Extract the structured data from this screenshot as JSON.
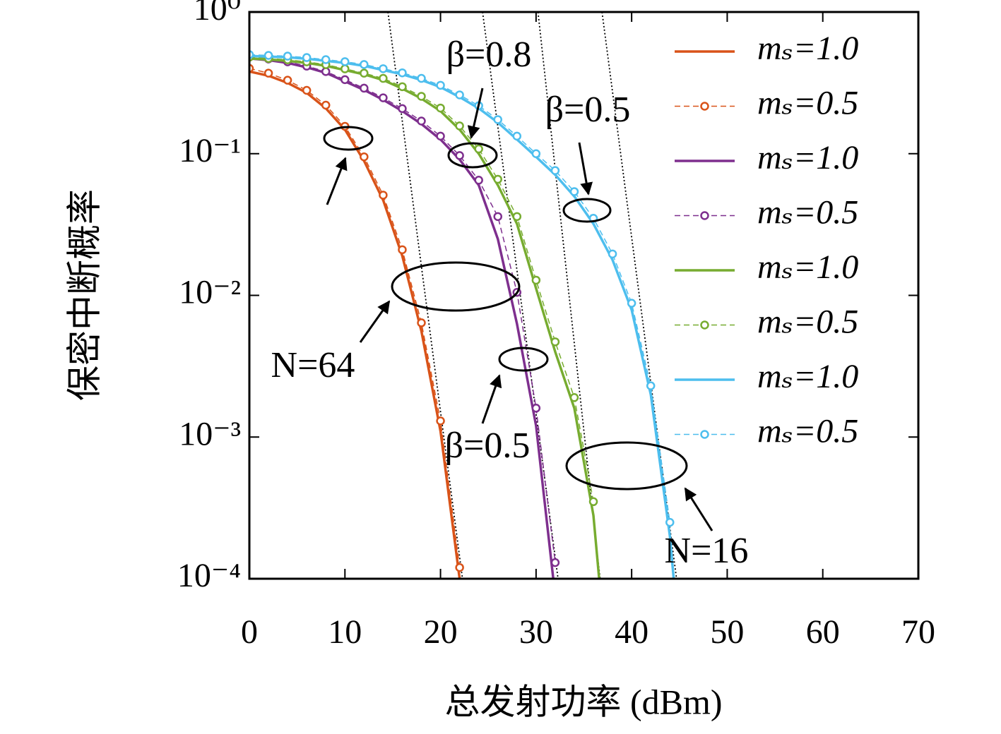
{
  "chart_data": {
    "type": "line",
    "xlabel": "总发射功率 (dBm)",
    "ylabel": "保密中断概率",
    "log_y": true,
    "xlim": [
      0,
      70
    ],
    "xticks": [
      0,
      10,
      20,
      30,
      40,
      50,
      60,
      70
    ],
    "ylim": [
      0.0001,
      1
    ],
    "yticks": [
      {
        "value": 0.0001,
        "label": "10⁻⁴"
      },
      {
        "value": 0.001,
        "label": "10⁻³"
      },
      {
        "value": 0.01,
        "label": "10⁻²"
      },
      {
        "value": 0.1,
        "label": "10⁻¹"
      },
      {
        "value": 1,
        "label": "10⁰"
      }
    ],
    "legend": "upper right",
    "series": [
      {
        "name": "mₛ=1.0",
        "color": "#d95319",
        "style": "solid",
        "x": [
          0,
          2,
          4,
          6,
          8,
          10,
          12,
          14,
          16,
          18,
          20,
          22
        ],
        "values": [
          0.38,
          0.355,
          0.316,
          0.269,
          0.209,
          0.148,
          0.089,
          0.047,
          0.019,
          0.0056,
          0.0011,
          0.0001
        ]
      },
      {
        "name": "mₛ=0.5",
        "color": "#d95319",
        "style": "dashed-marker",
        "x": [
          0,
          2,
          4,
          6,
          8,
          10,
          12,
          14,
          16,
          18,
          20,
          22
        ],
        "values": [
          0.4,
          0.37,
          0.33,
          0.28,
          0.22,
          0.156,
          0.095,
          0.051,
          0.021,
          0.0064,
          0.0013,
          0.00012
        ]
      },
      {
        "name": "mₛ=1.0",
        "color": "#7e2f8e",
        "style": "solid",
        "x": [
          0,
          2,
          4,
          6,
          8,
          10,
          12,
          14,
          16,
          18,
          20,
          22,
          24,
          26,
          28,
          30,
          31.8
        ],
        "values": [
          0.47,
          0.457,
          0.437,
          0.407,
          0.372,
          0.324,
          0.282,
          0.24,
          0.2,
          0.162,
          0.126,
          0.091,
          0.06,
          0.025,
          0.0063,
          0.0012,
          0.0001
        ]
      },
      {
        "name": "mₛ=0.5",
        "color": "#7e2f8e",
        "style": "dashed-marker",
        "x": [
          0,
          2,
          4,
          6,
          8,
          10,
          12,
          14,
          16,
          18,
          20,
          22,
          24,
          26,
          28,
          30,
          32
        ],
        "values": [
          0.48,
          0.466,
          0.445,
          0.415,
          0.38,
          0.333,
          0.29,
          0.248,
          0.208,
          0.17,
          0.133,
          0.097,
          0.065,
          0.036,
          0.0105,
          0.0016,
          0.00013
        ]
      },
      {
        "name": "mₛ=1.0",
        "color": "#77ac30",
        "style": "solid",
        "x": [
          0,
          2,
          4,
          6,
          8,
          10,
          12,
          14,
          16,
          18,
          20,
          22,
          24,
          26,
          28,
          30,
          32,
          34,
          36,
          36.6
        ],
        "values": [
          0.47,
          0.462,
          0.452,
          0.437,
          0.417,
          0.389,
          0.363,
          0.331,
          0.288,
          0.245,
          0.2,
          0.148,
          0.1,
          0.06,
          0.032,
          0.0112,
          0.004,
          0.0016,
          0.00028,
          0.0001
        ]
      },
      {
        "name": "mₛ=0.5",
        "color": "#77ac30",
        "style": "dashed-marker",
        "x": [
          0,
          2,
          4,
          6,
          8,
          10,
          12,
          14,
          16,
          18,
          20,
          22,
          24,
          26,
          28,
          30,
          32,
          34,
          36
        ],
        "values": [
          0.48,
          0.47,
          0.46,
          0.445,
          0.425,
          0.397,
          0.37,
          0.34,
          0.297,
          0.254,
          0.21,
          0.157,
          0.108,
          0.066,
          0.036,
          0.0128,
          0.0047,
          0.0019,
          0.00035
        ]
      },
      {
        "name": "mₛ=1.0",
        "color": "#4dbeee",
        "style": "solid",
        "x": [
          0,
          2,
          4,
          6,
          8,
          10,
          12,
          14,
          16,
          18,
          20,
          22,
          24,
          26,
          28,
          30,
          32,
          34,
          36,
          38,
          40,
          42,
          44,
          44.4
        ],
        "values": [
          0.49,
          0.484,
          0.479,
          0.468,
          0.452,
          0.437,
          0.417,
          0.389,
          0.363,
          0.331,
          0.295,
          0.251,
          0.209,
          0.166,
          0.126,
          0.095,
          0.071,
          0.05,
          0.032,
          0.0178,
          0.0079,
          0.002,
          0.0002,
          0.0001
        ]
      },
      {
        "name": "mₛ=0.5",
        "color": "#4dbeee",
        "style": "dashed-marker",
        "x": [
          0,
          2,
          4,
          6,
          8,
          10,
          12,
          14,
          16,
          18,
          20,
          22,
          24,
          26,
          28,
          30,
          32,
          34,
          36,
          38,
          40,
          42,
          44
        ],
        "values": [
          0.5,
          0.494,
          0.488,
          0.477,
          0.461,
          0.446,
          0.426,
          0.398,
          0.372,
          0.34,
          0.304,
          0.26,
          0.218,
          0.174,
          0.133,
          0.1,
          0.076,
          0.054,
          0.035,
          0.0196,
          0.0088,
          0.0023,
          0.00025
        ]
      }
    ],
    "reference_lines": [
      {
        "x": [
          14.5,
          22.3
        ],
        "values": [
          1,
          0.0001
        ]
      },
      {
        "x": [
          24.4,
          32.3
        ],
        "values": [
          1,
          0.0001
        ]
      },
      {
        "x": [
          30.2,
          36.7
        ],
        "values": [
          1,
          0.0001
        ]
      },
      {
        "x": [
          36.9,
          44.7
        ],
        "values": [
          1,
          0.0001
        ]
      }
    ],
    "annotations": [
      "β=0.8",
      "β=0.5",
      "N=64",
      "β=0.5",
      "N=16"
    ]
  }
}
